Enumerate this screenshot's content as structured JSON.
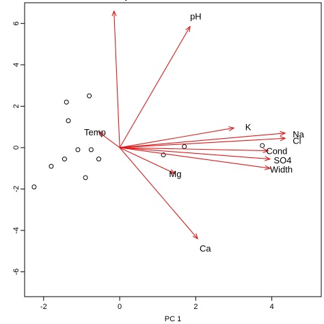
{
  "chart_data": {
    "type": "biplot",
    "xlabel": "PC 1",
    "ylabel": "",
    "xlim": [
      -2.5,
      5.3
    ],
    "ylim": [
      -7.2,
      7.0
    ],
    "x_ticks": [
      "-2",
      "0",
      "2",
      "4"
    ],
    "y_ticks": [
      "-6",
      "-4",
      "-2",
      "0",
      "2",
      "4",
      "6"
    ],
    "points": [
      {
        "x": -2.25,
        "y": -1.9
      },
      {
        "x": -1.8,
        "y": -0.9
      },
      {
        "x": -1.45,
        "y": -0.55
      },
      {
        "x": -1.4,
        "y": 2.2
      },
      {
        "x": -1.35,
        "y": 1.3
      },
      {
        "x": -1.1,
        "y": -0.1
      },
      {
        "x": -0.9,
        "y": -1.45
      },
      {
        "x": -0.8,
        "y": 2.5
      },
      {
        "x": -0.75,
        "y": -0.1
      },
      {
        "x": -0.55,
        "y": -0.55
      },
      {
        "x": 1.15,
        "y": -0.35
      },
      {
        "x": 1.7,
        "y": 0.05
      },
      {
        "x": 3.75,
        "y": 0.1
      }
    ],
    "vectors": [
      {
        "name": "Velocity",
        "x": -0.15,
        "y": 6.6,
        "lx": -0.15,
        "ly": 7.3,
        "anchor": "middle"
      },
      {
        "name": "pH",
        "x": 1.85,
        "y": 5.85,
        "lx": 2.0,
        "ly": 6.3,
        "anchor": "middle"
      },
      {
        "name": "Temp",
        "x": -0.55,
        "y": 0.75,
        "lx": -0.65,
        "ly": 0.7,
        "anchor": "middle"
      },
      {
        "name": "K",
        "x": 3.0,
        "y": 0.95,
        "lx": 3.3,
        "ly": 0.95,
        "anchor": "start"
      },
      {
        "name": "Na",
        "x": 4.35,
        "y": 0.7,
        "lx": 4.55,
        "ly": 0.6,
        "anchor": "start"
      },
      {
        "name": "Cl",
        "x": 4.35,
        "y": 0.45,
        "lx": 4.55,
        "ly": 0.3,
        "anchor": "start"
      },
      {
        "name": "Cond",
        "x": 3.9,
        "y": -0.15,
        "lx": 3.85,
        "ly": -0.2,
        "anchor": "start"
      },
      {
        "name": "SO4",
        "x": 3.95,
        "y": -0.55,
        "lx": 4.05,
        "ly": -0.65,
        "anchor": "start"
      },
      {
        "name": "Width",
        "x": 3.95,
        "y": -1.0,
        "lx": 3.95,
        "ly": -1.1,
        "anchor": "start"
      },
      {
        "name": "Mg",
        "x": 1.45,
        "y": -1.25,
        "lx": 1.3,
        "ly": -1.3,
        "anchor": "start"
      },
      {
        "name": "Ca",
        "x": 2.05,
        "y": -4.4,
        "lx": 2.25,
        "ly": -4.9,
        "anchor": "middle"
      }
    ],
    "colors": {
      "vector": "#e01818",
      "point": "#000000",
      "axis": "#000000"
    }
  }
}
